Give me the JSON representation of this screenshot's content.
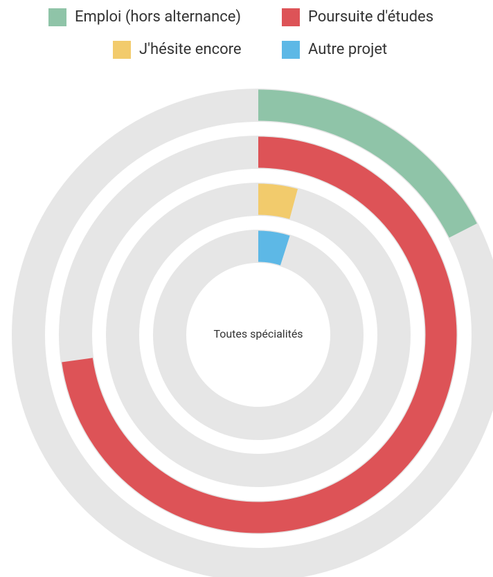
{
  "chart_data": {
    "type": "radialBar",
    "center_label": "Toutes spécialités",
    "ylim": [
      0,
      100
    ],
    "series": [
      {
        "name": "Emploi (hors alternance)",
        "color": "#8fc4a8",
        "values": [
          17.5
        ]
      },
      {
        "name": "Poursuite d'études",
        "color": "#dd5357",
        "values": [
          72.8
        ]
      },
      {
        "name": "J'hésite encore",
        "color": "#f2cb6c",
        "values": [
          4.2
        ]
      },
      {
        "name": "Autre projet",
        "color": "#5db8e6",
        "values": [
          4.9
        ]
      }
    ]
  }
}
